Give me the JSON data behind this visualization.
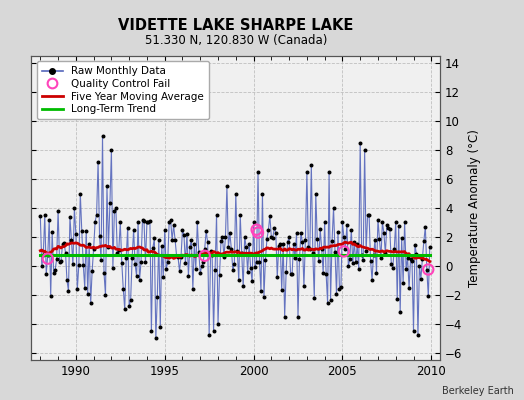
{
  "title": "VIDETTE LAKE SHARPE LAKE",
  "subtitle": "51.330 N, 120.830 W (Canada)",
  "ylabel_right": "Temperature Anomaly (°C)",
  "credit": "Berkeley Earth",
  "xlim": [
    1987.5,
    2010.5
  ],
  "ylim": [
    -6.5,
    14.5
  ],
  "yticks": [
    -6,
    -4,
    -2,
    0,
    2,
    4,
    6,
    8,
    10,
    12,
    14
  ],
  "xticks": [
    1990,
    1995,
    2000,
    2005,
    2010
  ],
  "bg_color": "#d8d8d8",
  "plot_bg_color": "#f0f0f0",
  "raw_line_color": "#5566bb",
  "raw_dot_color": "#000000",
  "moving_avg_color": "#cc0000",
  "trend_color": "#00bb00",
  "qc_fail_color": "#ff44bb"
}
